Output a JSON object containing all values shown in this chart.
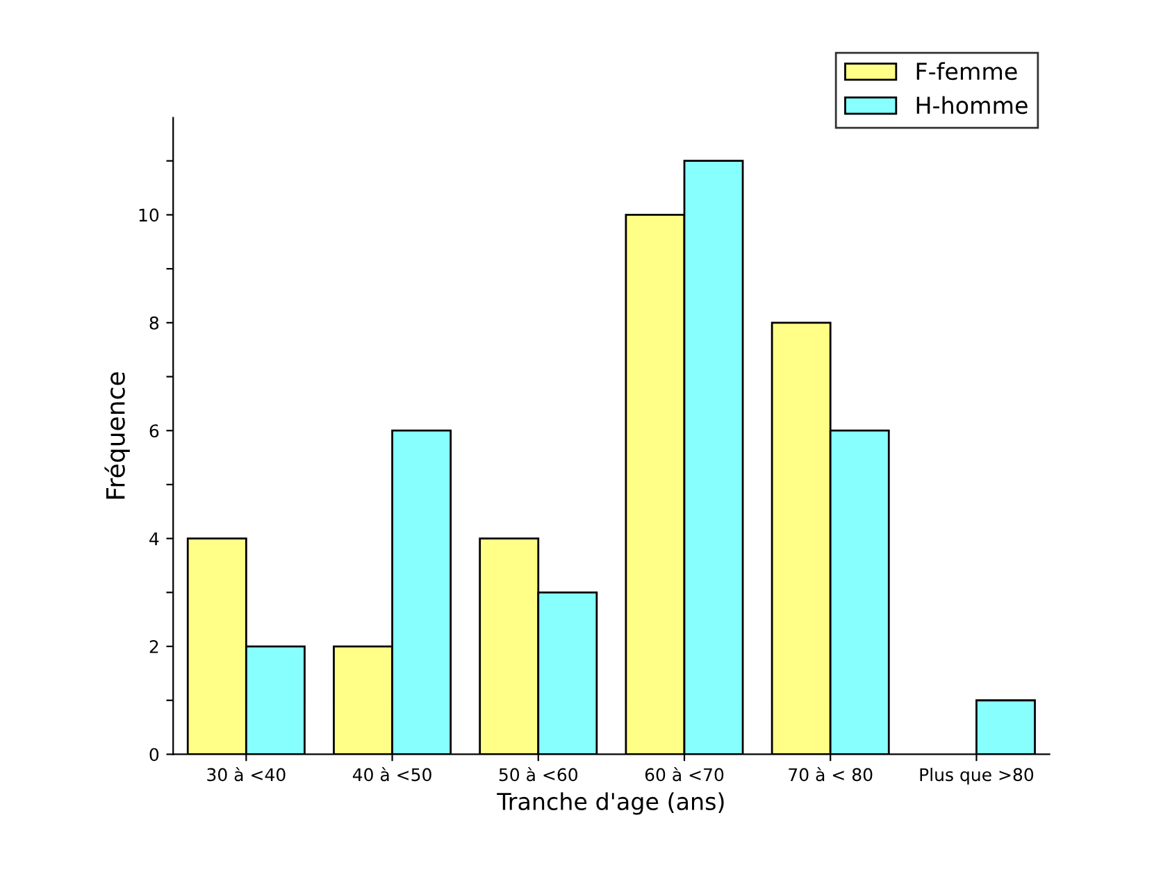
{
  "chart_data": {
    "type": "bar",
    "xlabel": "Tranche d'age (ans)",
    "ylabel": "Fréquence",
    "categories": [
      "30 à <40",
      "40 à <50",
      "50 à <60",
      "60 à <70",
      "70 à < 80",
      "Plus que >80"
    ],
    "series": [
      {
        "name": "F-femme",
        "color": "#ffff88",
        "values": [
          4,
          2,
          4,
          10,
          8,
          0
        ]
      },
      {
        "name": "H-homme",
        "color": "#88ffff",
        "values": [
          2,
          6,
          3,
          11,
          6,
          1
        ]
      }
    ],
    "ylim": [
      0,
      11.8
    ],
    "yticks": [
      0,
      {
        "value": 1,
        "label": null
      },
      2,
      {
        "value": 3,
        "label": null
      },
      4,
      {
        "value": 5,
        "label": null
      },
      6,
      {
        "value": 7,
        "label": null
      },
      8,
      {
        "value": 9,
        "label": null
      },
      10,
      {
        "value": 11,
        "label": null
      }
    ],
    "grid": false,
    "legend": "top right"
  }
}
